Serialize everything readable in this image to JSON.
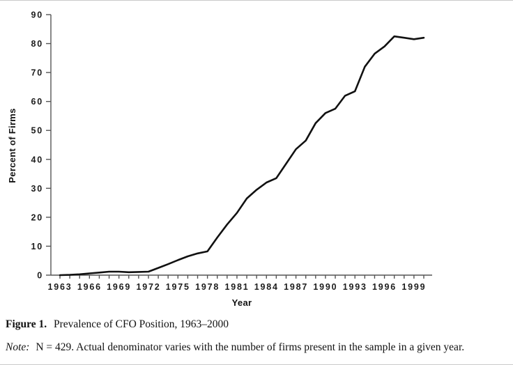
{
  "figure": {
    "caption": {
      "label": "Figure 1.",
      "text": "Prevalence of CFO Position, 1963–2000"
    },
    "note": {
      "label": "Note:",
      "text": "N = 429. Actual denominator varies with the number of firms present in the sample in a given year."
    }
  },
  "chart_data": {
    "type": "line",
    "title": "",
    "xlabel": "Year",
    "ylabel": "Percent of Firms",
    "xlim": [
      1963,
      2000
    ],
    "ylim": [
      0,
      90
    ],
    "grid": false,
    "legend": false,
    "line_color": "#111111",
    "axis_color": "#555555",
    "y_ticks": [
      0,
      10,
      20,
      30,
      40,
      50,
      60,
      70,
      80,
      90
    ],
    "x_tick_labels": [
      1963,
      1966,
      1969,
      1972,
      1975,
      1978,
      1981,
      1984,
      1987,
      1990,
      1993,
      1996,
      1999
    ],
    "x": [
      1963,
      1964,
      1965,
      1966,
      1967,
      1968,
      1969,
      1970,
      1971,
      1972,
      1973,
      1974,
      1975,
      1976,
      1977,
      1978,
      1979,
      1980,
      1981,
      1982,
      1983,
      1984,
      1985,
      1986,
      1987,
      1988,
      1989,
      1990,
      1991,
      1992,
      1993,
      1994,
      1995,
      1996,
      1997,
      1998,
      1999,
      2000
    ],
    "values": [
      0,
      0.1,
      0.3,
      0.6,
      0.9,
      1.2,
      1.2,
      1.0,
      1.1,
      1.2,
      2.5,
      3.8,
      5.2,
      6.5,
      7.5,
      8.2,
      13,
      17.5,
      21.5,
      26.5,
      29.5,
      32,
      33.5,
      38.5,
      43.5,
      46.5,
      52.5,
      56,
      57.5,
      62,
      63.5,
      72,
      76.5,
      79,
      82.5,
      82,
      81.5,
      82
    ]
  }
}
